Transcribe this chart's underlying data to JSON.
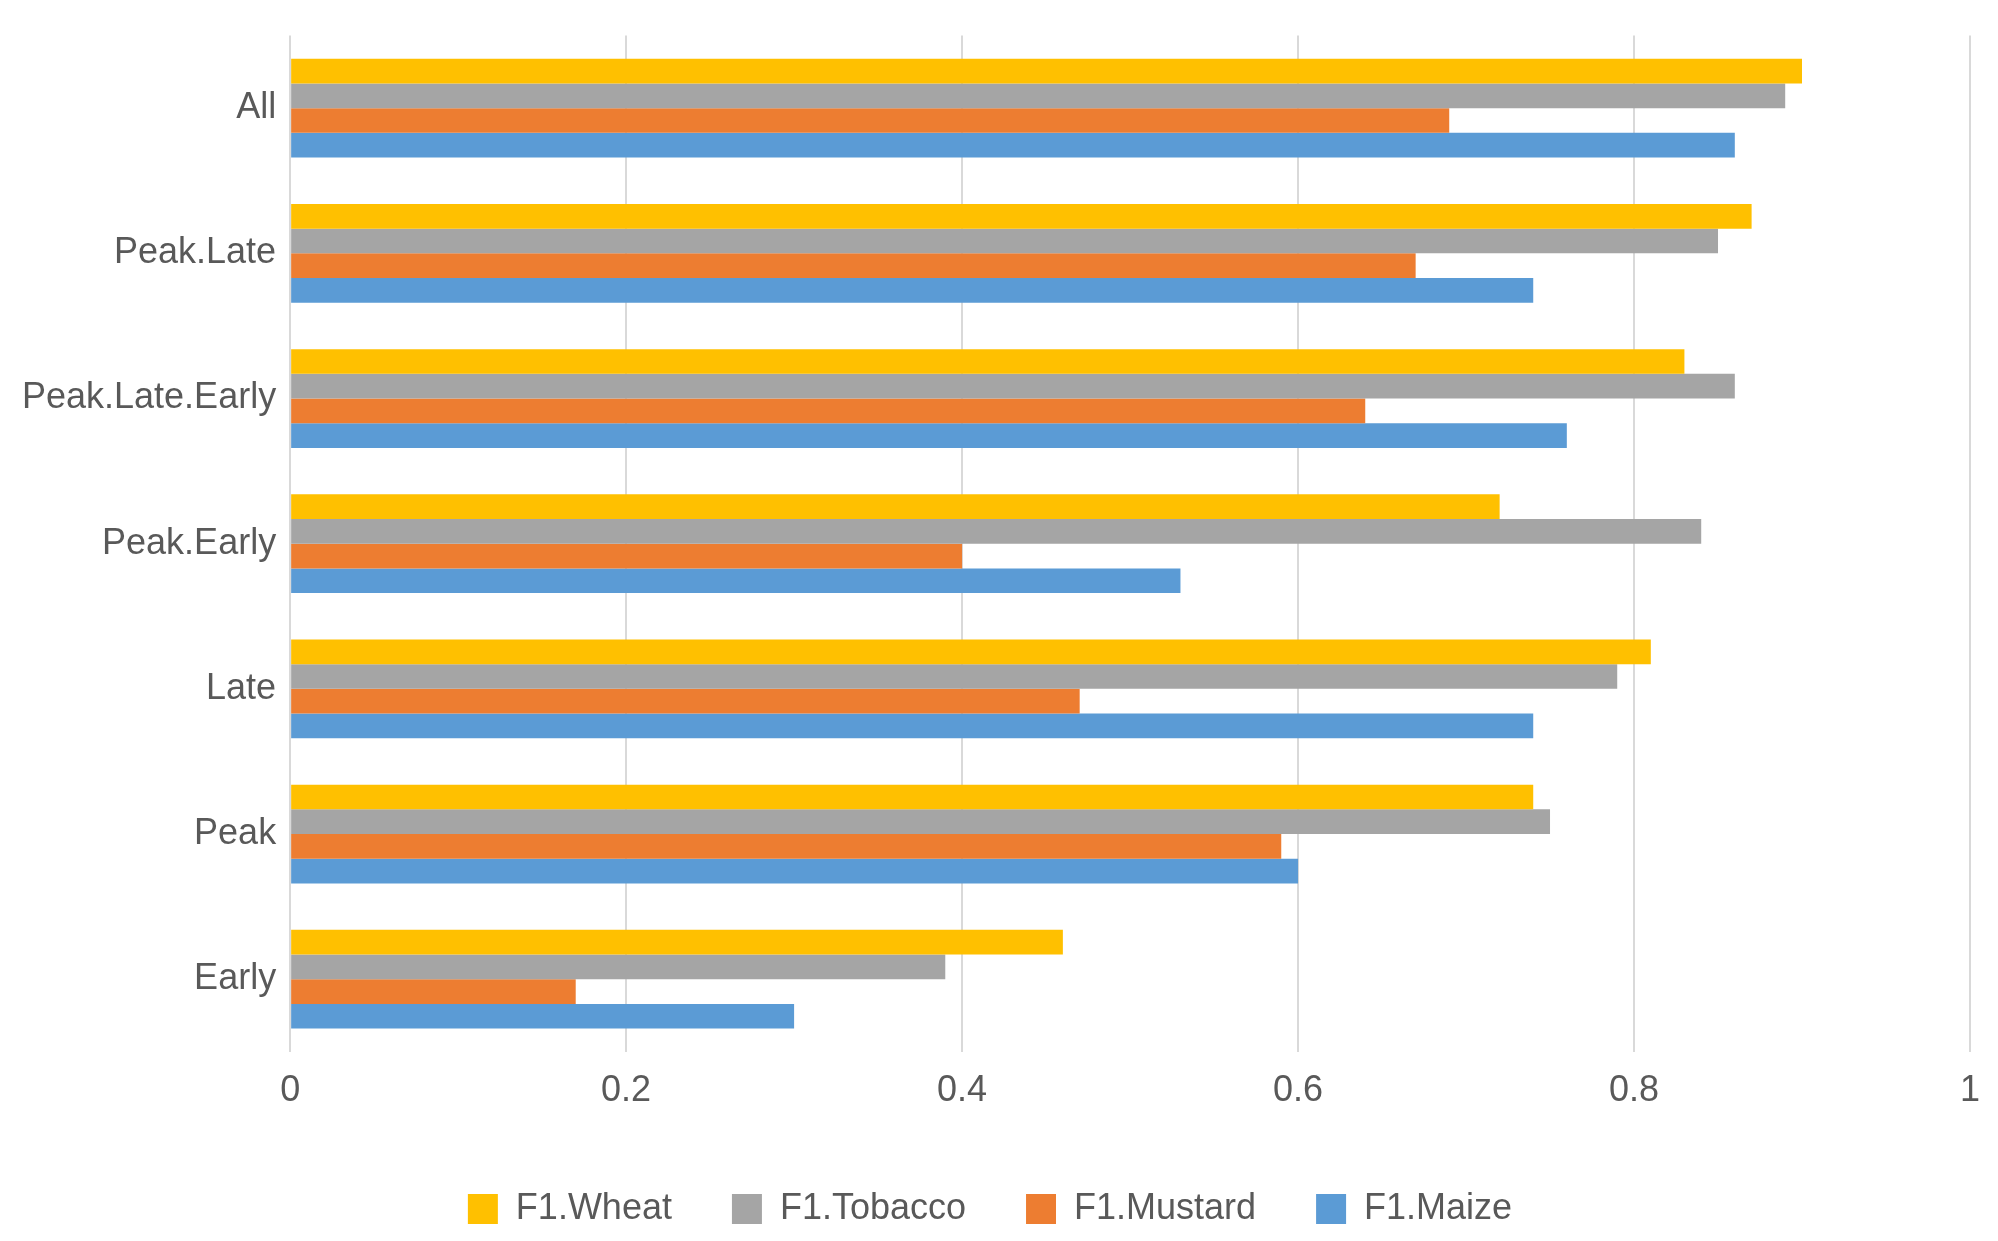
{
  "chart_data": {
    "type": "bar",
    "orientation": "horizontal",
    "categories": [
      "All",
      "Peak.Late",
      "Peak.Late.Early",
      "Peak.Early",
      "Late",
      "Peak",
      "Early"
    ],
    "series": [
      {
        "name": "F1.Wheat",
        "color": "#ffc000",
        "values": [
          0.9,
          0.87,
          0.83,
          0.72,
          0.81,
          0.74,
          0.46
        ]
      },
      {
        "name": "F1.Tobacco",
        "color": "#a5a5a5",
        "values": [
          0.89,
          0.85,
          0.86,
          0.84,
          0.79,
          0.75,
          0.39
        ]
      },
      {
        "name": "F1.Mustard",
        "color": "#ed7d31",
        "values": [
          0.69,
          0.67,
          0.64,
          0.4,
          0.47,
          0.59,
          0.17
        ]
      },
      {
        "name": "F1.Maize",
        "color": "#5b9bd5",
        "values": [
          0.86,
          0.74,
          0.76,
          0.53,
          0.74,
          0.6,
          0.3
        ]
      }
    ],
    "xlim": [
      0,
      1
    ],
    "xticks": [
      0,
      0.2,
      0.4,
      0.6,
      0.8,
      1
    ],
    "grid": "x",
    "legend": "bottom"
  }
}
